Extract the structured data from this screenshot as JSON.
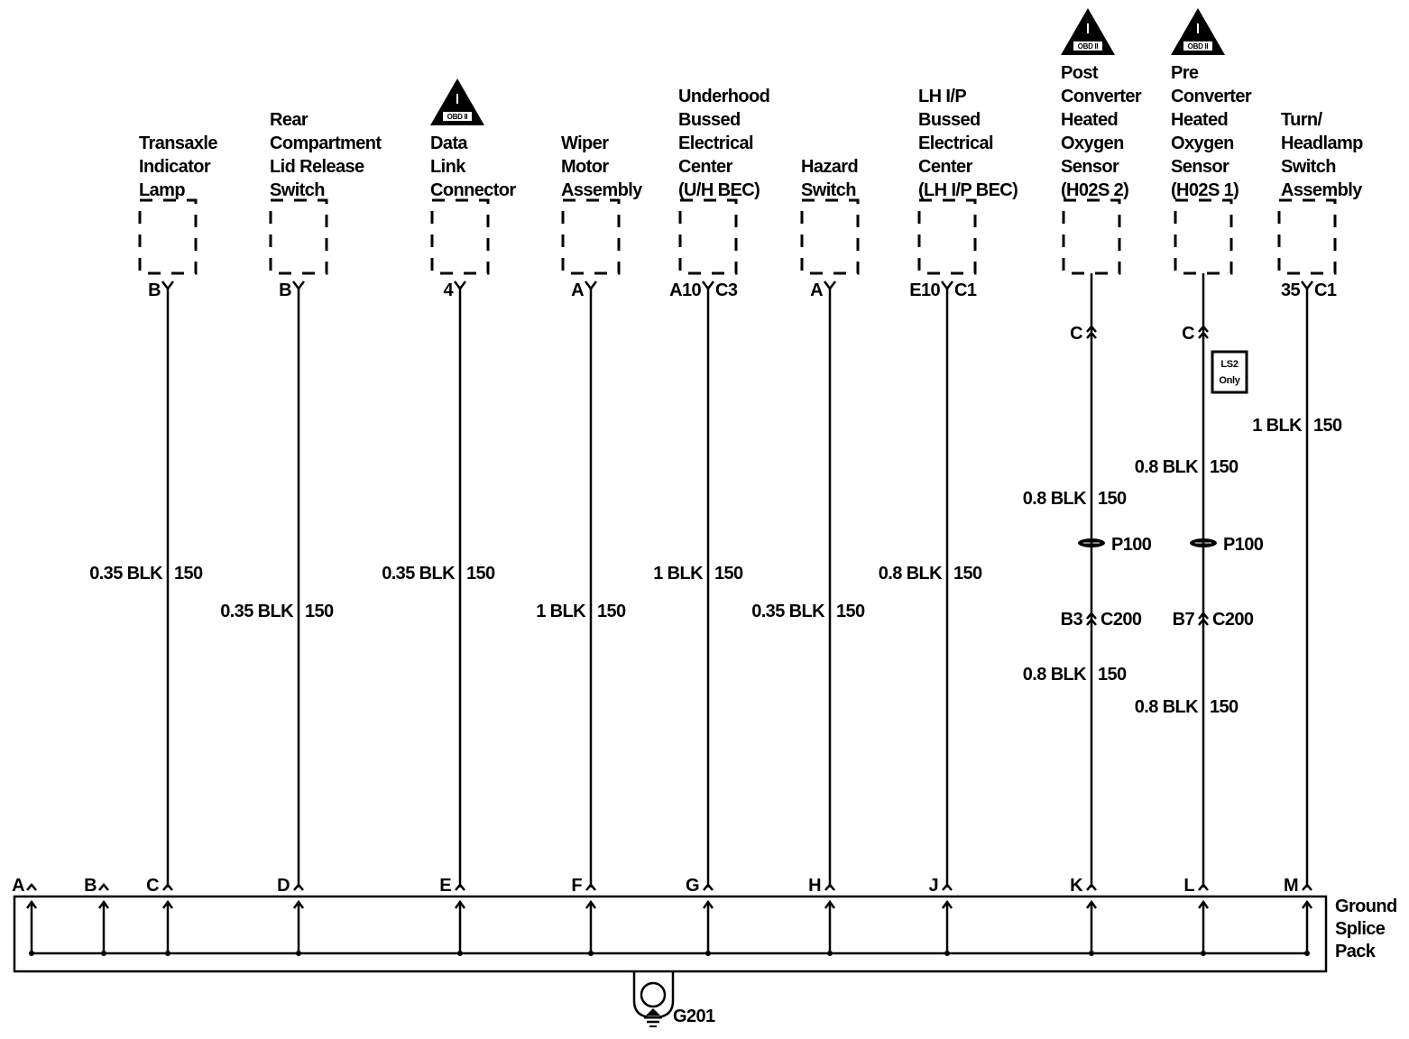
{
  "diagram": {
    "ground_splice_pack_label": [
      "Ground",
      "Splice",
      "Pack"
    ],
    "ground_label": "G201",
    "obd_icon_text": "OBD II",
    "colors": {
      "ink": "#000000",
      "background": "#ffffff"
    },
    "columns": [
      {
        "title": [
          "Transaxle",
          "Indicator",
          "Lamp"
        ],
        "obd": false,
        "pin_left": "B",
        "pin_right": "",
        "wires": [
          {
            "gauge": "0.35 BLK",
            "circuit": "150",
            "level": "a"
          }
        ],
        "splice": "C"
      },
      {
        "title": [
          "Rear",
          "Compartment",
          "Lid Release",
          "Switch"
        ],
        "obd": false,
        "pin_left": "B",
        "pin_right": "",
        "wires": [
          {
            "gauge": "0.35 BLK",
            "circuit": "150",
            "level": "b"
          }
        ],
        "splice": "D"
      },
      {
        "title": [
          "Data",
          "Link",
          "Connector"
        ],
        "obd": true,
        "pin_left": "4",
        "pin_right": "",
        "wires": [
          {
            "gauge": "0.35 BLK",
            "circuit": "150",
            "level": "a"
          }
        ],
        "splice": "E"
      },
      {
        "title": [
          "Wiper",
          "Motor",
          "Assembly"
        ],
        "obd": false,
        "pin_left": "A",
        "pin_right": "",
        "wires": [
          {
            "gauge": "1 BLK",
            "circuit": "150",
            "level": "b"
          }
        ],
        "splice": "F"
      },
      {
        "title": [
          "Underhood",
          "Bussed",
          "Electrical",
          "Center",
          "(U/H BEC)"
        ],
        "obd": false,
        "pin_left": "A10",
        "pin_right": "C3",
        "wires": [
          {
            "gauge": "1 BLK",
            "circuit": "150",
            "level": "a"
          }
        ],
        "splice": "G"
      },
      {
        "title": [
          "Hazard",
          "Switch"
        ],
        "obd": false,
        "pin_left": "A",
        "pin_right": "",
        "wires": [
          {
            "gauge": "0.35 BLK",
            "circuit": "150",
            "level": "b"
          }
        ],
        "splice": "H"
      },
      {
        "title": [
          "LH I/P",
          "Bussed",
          "Electrical",
          "Center",
          "(LH I/P BEC)"
        ],
        "obd": false,
        "pin_left": "E10",
        "pin_right": "C1",
        "wires": [
          {
            "gauge": "0.8 BLK",
            "circuit": "150",
            "level": "a"
          }
        ],
        "splice": "J"
      },
      {
        "title": [
          "Post",
          "Converter",
          "Heated",
          "Oxygen",
          "Sensor",
          "(H02S 2)"
        ],
        "obd": true,
        "pin_left": "",
        "pin_right": "",
        "inline_connector": "C",
        "option_box": null,
        "wires": [
          {
            "gauge": "0.8 BLK",
            "circuit": "150",
            "level": "c"
          },
          {
            "gauge": "0.8 BLK",
            "circuit": "150",
            "level": "e"
          }
        ],
        "splice_pack_p": "P100",
        "c200_pin": "B3",
        "c200": "C200",
        "splice": "K"
      },
      {
        "title": [
          "Pre",
          "Converter",
          "Heated",
          "Oxygen",
          "Sensor",
          "(H02S 1)"
        ],
        "obd": true,
        "pin_left": "",
        "pin_right": "",
        "inline_connector": "C",
        "option_box": [
          "LS2",
          "Only"
        ],
        "wires": [
          {
            "gauge": "0.8 BLK",
            "circuit": "150",
            "level": "d"
          },
          {
            "gauge": "0.8 BLK",
            "circuit": "150",
            "level": "f"
          }
        ],
        "splice_pack_p": "P100",
        "c200_pin": "B7",
        "c200": "C200",
        "splice": "L"
      },
      {
        "title": [
          "Turn/",
          "Headlamp",
          "Switch",
          "Assembly"
        ],
        "obd": false,
        "pin_left": "35",
        "pin_right": "C1",
        "wires": [
          {
            "gauge": "1 BLK",
            "circuit": "150",
            "level": "g"
          }
        ],
        "splice": "M"
      }
    ],
    "unused_splices": [
      "A",
      "B"
    ]
  }
}
